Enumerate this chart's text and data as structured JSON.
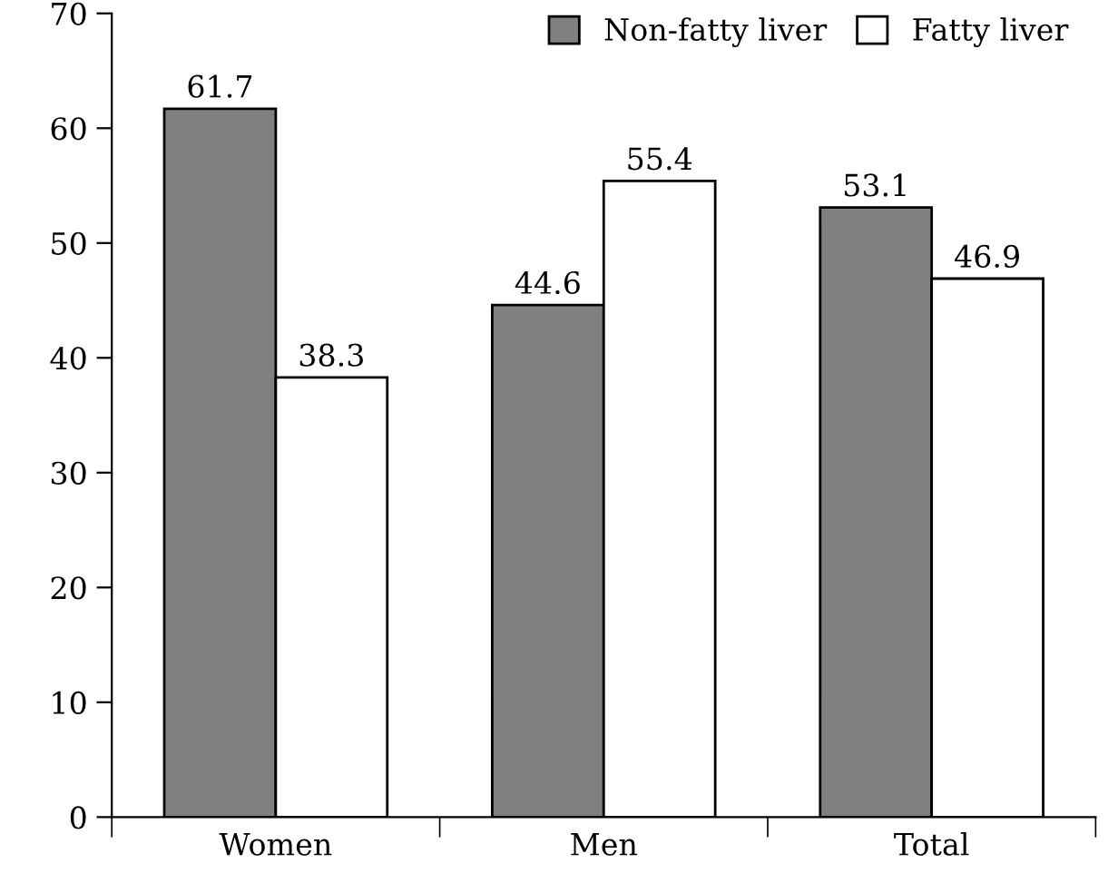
{
  "chart_data": {
    "type": "bar",
    "categories": [
      "Women",
      "Men",
      "Total"
    ],
    "series": [
      {
        "name": "Non-fatty liver",
        "color": "#808080",
        "values": [
          61.7,
          44.6,
          53.1
        ]
      },
      {
        "name": "Fatty liver",
        "color": "#ffffff",
        "values": [
          38.3,
          55.4,
          46.9
        ]
      }
    ],
    "ylim": [
      0,
      70
    ],
    "yticks": [
      0,
      10,
      20,
      30,
      40,
      50,
      60,
      70
    ],
    "grid": false,
    "legend": "top right",
    "data_labels": true
  }
}
